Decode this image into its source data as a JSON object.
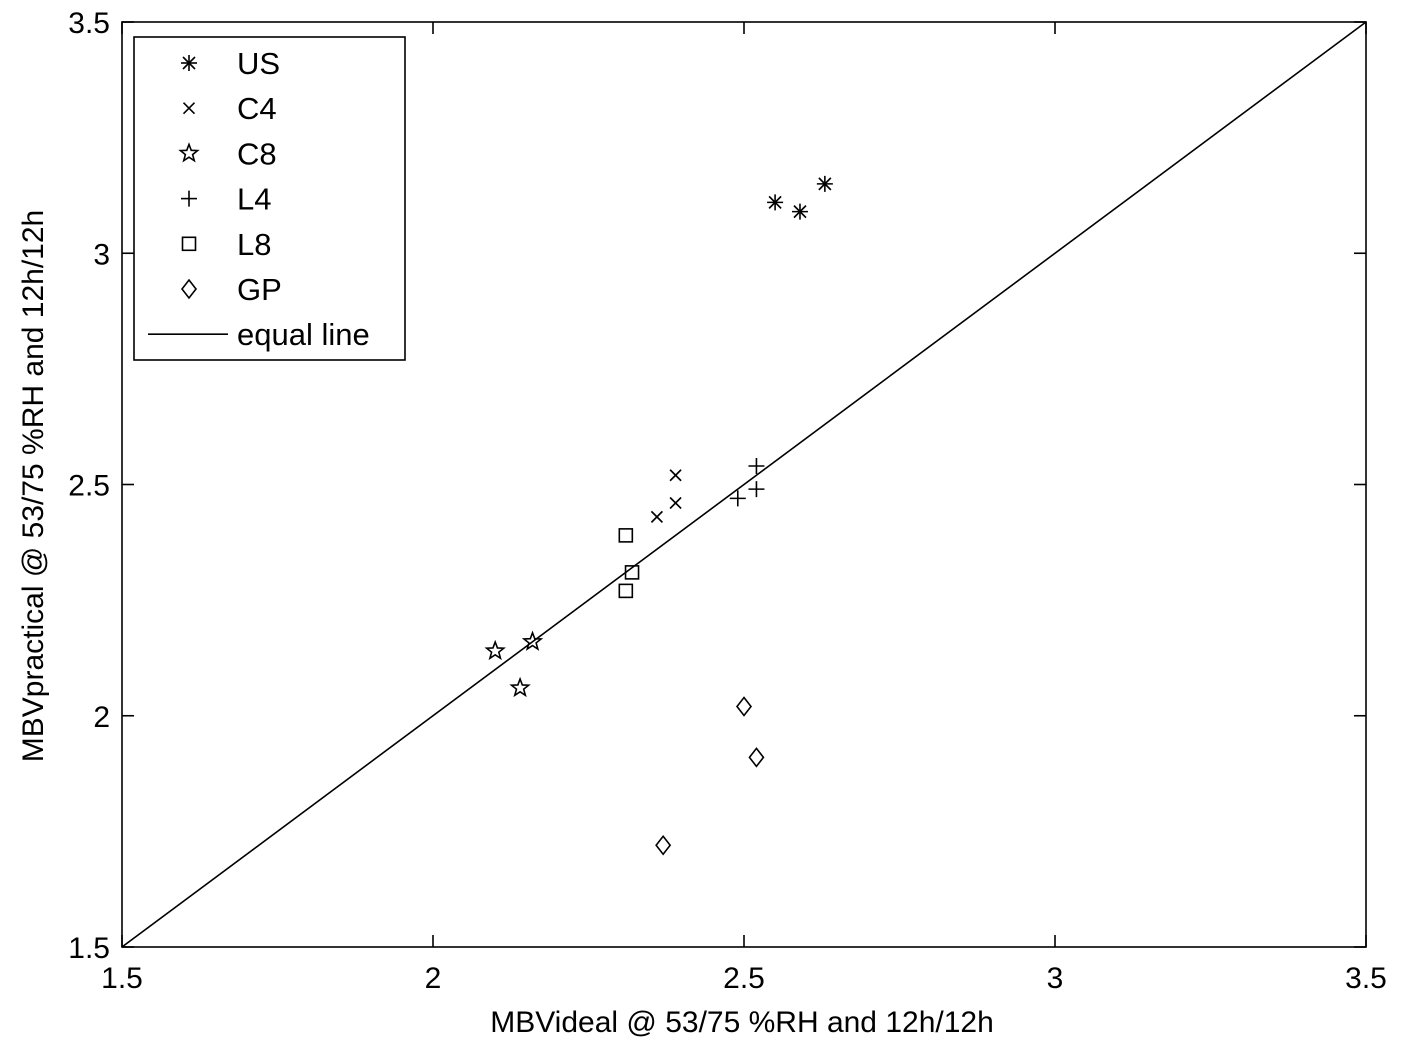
{
  "chart_data": {
    "type": "scatter",
    "title": "",
    "xlabel": "MBVideal @ 53/75 %RH and 12h/12h",
    "ylabel": "MBVpractical @ 53/75 %RH and 12h/12h",
    "xlim": [
      1.5,
      3.5
    ],
    "ylim": [
      1.5,
      3.5
    ],
    "xticks": [
      1.5,
      2,
      2.5,
      3,
      3.5
    ],
    "yticks": [
      1.5,
      2,
      2.5,
      3,
      3.5
    ],
    "xtick_labels": [
      "1.5",
      "2",
      "2.5",
      "3",
      "3.5"
    ],
    "ytick_labels": [
      "1.5",
      "2",
      "2.5",
      "3",
      "3.5"
    ],
    "grid": false,
    "legend_position": "top-left",
    "series": [
      {
        "name": "US",
        "marker": "asterisk",
        "points": [
          [
            2.55,
            3.11
          ],
          [
            2.59,
            3.09
          ],
          [
            2.63,
            3.15
          ]
        ]
      },
      {
        "name": "C4",
        "marker": "x",
        "points": [
          [
            2.36,
            2.43
          ],
          [
            2.39,
            2.46
          ],
          [
            2.39,
            2.52
          ]
        ]
      },
      {
        "name": "C8",
        "marker": "star",
        "points": [
          [
            2.1,
            2.14
          ],
          [
            2.14,
            2.06
          ],
          [
            2.16,
            2.16
          ]
        ]
      },
      {
        "name": "L4",
        "marker": "plus",
        "points": [
          [
            2.49,
            2.47
          ],
          [
            2.52,
            2.49
          ],
          [
            2.52,
            2.54
          ]
        ]
      },
      {
        "name": "L8",
        "marker": "square",
        "points": [
          [
            2.31,
            2.39
          ],
          [
            2.31,
            2.27
          ],
          [
            2.32,
            2.31
          ]
        ]
      },
      {
        "name": "GP",
        "marker": "diamond",
        "points": [
          [
            2.37,
            1.72
          ],
          [
            2.5,
            2.02
          ],
          [
            2.52,
            1.91
          ]
        ]
      },
      {
        "name": "equal line",
        "marker": "line",
        "points": [
          [
            1.5,
            1.5
          ],
          [
            3.5,
            3.5
          ]
        ]
      }
    ]
  }
}
